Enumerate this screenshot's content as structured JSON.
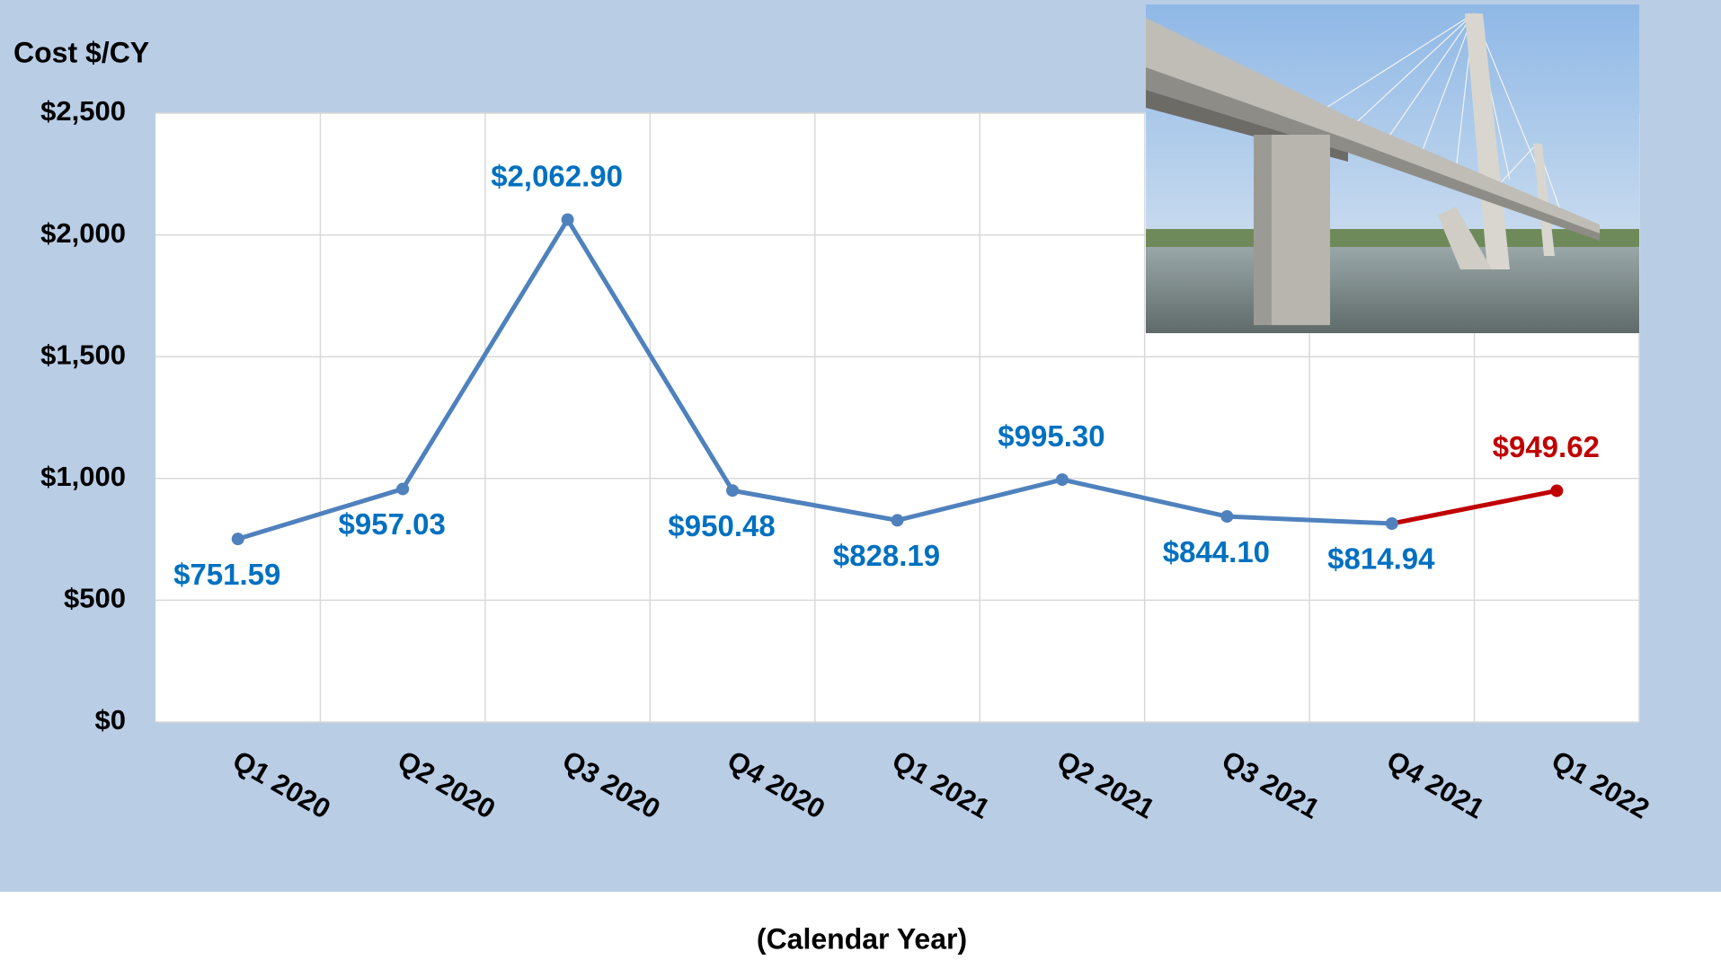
{
  "chart_data": {
    "type": "line",
    "y_axis_label": "Cost $/CY",
    "x_axis_label": "(Calendar Year)",
    "categories": [
      "Q1 2020",
      "Q2 2020",
      "Q3 2020",
      "Q4 2020",
      "Q1 2021",
      "Q2 2021",
      "Q3 2021",
      "Q4 2021",
      "Q1 2022"
    ],
    "values": [
      751.59,
      957.03,
      2062.9,
      950.48,
      828.19,
      995.3,
      844.1,
      814.94,
      949.62
    ],
    "value_labels": [
      "$751.59",
      "$957.03",
      "$2,062.90",
      "$950.48",
      "$828.19",
      "$995.30",
      "$844.10",
      "$814.94",
      "$949.62"
    ],
    "point_colors": [
      "#4f81bd",
      "#4f81bd",
      "#4f81bd",
      "#4f81bd",
      "#4f81bd",
      "#4f81bd",
      "#4f81bd",
      "#4f81bd",
      "#c00000"
    ],
    "label_colors": [
      "#0070c0",
      "#0070c0",
      "#0070c0",
      "#0070c0",
      "#0070c0",
      "#0070c0",
      "#0070c0",
      "#0070c0",
      "#c00000"
    ],
    "ylim": [
      0,
      2500
    ],
    "yticks": [
      {
        "value": 0,
        "label": "$0"
      },
      {
        "value": 500,
        "label": "$500"
      },
      {
        "value": 1000,
        "label": "$1,000"
      },
      {
        "value": 1500,
        "label": "$1,500"
      },
      {
        "value": 2000,
        "label": "$2,000"
      },
      {
        "value": 2500,
        "label": "$2,500"
      }
    ],
    "grid": true
  }
}
